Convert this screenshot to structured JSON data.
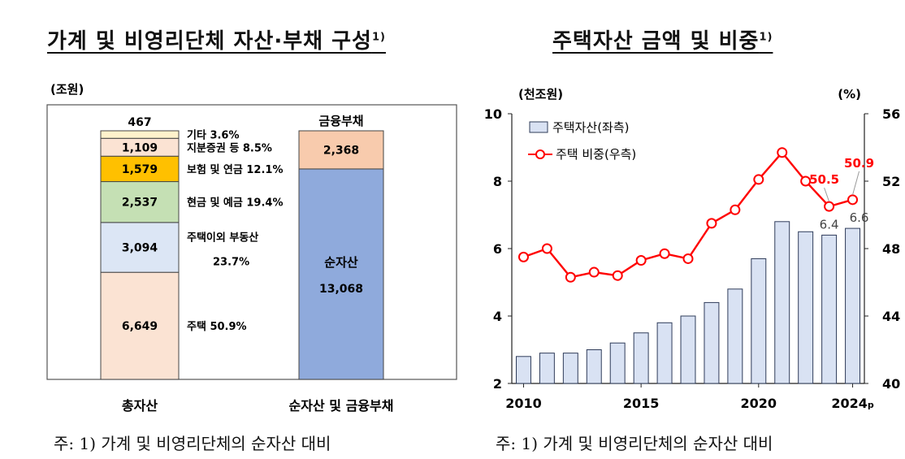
{
  "chart_data": [
    {
      "type": "stacked-bar",
      "title": "가계 및 비영리단체 자산·부채 구성",
      "title_footnote": "1)",
      "unit": "(조원)",
      "categories": [
        "총자산",
        "순자산 및 금융부채"
      ],
      "total_assets": [
        {
          "name": "주택",
          "value": 6649,
          "value_label": "6,649",
          "share_label": "주택 50.9%",
          "color": "#fbe3d3"
        },
        {
          "name": "주택이외 부동산",
          "value": 3094,
          "value_label": "3,094",
          "share_label": "주택이외 부동산",
          "share_label2": "23.7%",
          "color": "#dce6f5"
        },
        {
          "name": "현금 및 예금",
          "value": 2537,
          "value_label": "2,537",
          "share_label": "현금 및 예금 19.4%",
          "color": "#c5e0b4"
        },
        {
          "name": "보험 및 연금",
          "value": 1579,
          "value_label": "1,579",
          "share_label": "보험 및 연금 12.1%",
          "color": "#ffc000"
        },
        {
          "name": "지분증권 등",
          "value": 1109,
          "value_label": "1,109",
          "share_label": "지분증권 등 8.5%",
          "color": "#fbe3d3"
        },
        {
          "name": "기타",
          "value": 467,
          "value_label": "467",
          "share_label": "기타 3.6%",
          "color": "#fff2cc"
        }
      ],
      "net_and_liabilities": [
        {
          "name": "순자산",
          "value": 13068,
          "value_label": "13,068",
          "color": "#8faadc"
        },
        {
          "name": "금융부채",
          "value": 2368,
          "value_label": "2,368",
          "color": "#f8cbad"
        }
      ],
      "liability_header": "금융부채",
      "note": "주: 1) 가계 및 비영리단체의 순자산 대비"
    },
    {
      "type": "bar+line",
      "title": "주택자산 금액 및 비중",
      "title_footnote": "1)",
      "left_unit": "(천조원)",
      "right_unit": "(%)",
      "x": [
        2010,
        2011,
        2012,
        2013,
        2014,
        2015,
        2016,
        2017,
        2018,
        2019,
        2020,
        2021,
        2022,
        2023,
        2024
      ],
      "x_tick_labels": [
        "2010",
        "2015",
        "2020",
        "2024p"
      ],
      "x_tick_years": [
        2010,
        2015,
        2020,
        2024
      ],
      "left_axis": {
        "min": 2,
        "max": 10,
        "ticks": [
          "2",
          "4",
          "6",
          "8",
          "10"
        ]
      },
      "right_axis": {
        "min": 40,
        "max": 56,
        "ticks": [
          "40",
          "44",
          "48",
          "52",
          "56"
        ]
      },
      "series": [
        {
          "name": "주택자산(좌측)",
          "kind": "bar",
          "axis": "left",
          "color": "#d9e2f3",
          "stroke": "#2f3c5a",
          "values": [
            2.8,
            2.9,
            2.9,
            3.0,
            3.2,
            3.5,
            3.8,
            4.0,
            4.4,
            4.8,
            5.7,
            6.8,
            6.5,
            6.4,
            6.6
          ]
        },
        {
          "name": "주택 비중(우측)",
          "kind": "line",
          "axis": "right",
          "color": "#ff0000",
          "values": [
            47.5,
            48.0,
            46.3,
            46.6,
            46.4,
            47.3,
            47.7,
            47.4,
            49.5,
            50.3,
            52.1,
            53.7,
            52.0,
            50.5,
            50.9
          ]
        }
      ],
      "data_labels": [
        {
          "series": 0,
          "index": 13,
          "text": "6.4"
        },
        {
          "series": 0,
          "index": 14,
          "text": "6.6"
        },
        {
          "series": 1,
          "index": 13,
          "text": "50.5"
        },
        {
          "series": 1,
          "index": 14,
          "text": "50.9"
        }
      ],
      "note": "주: 1) 가계 및 비영리단체의 순자산 대비"
    }
  ]
}
